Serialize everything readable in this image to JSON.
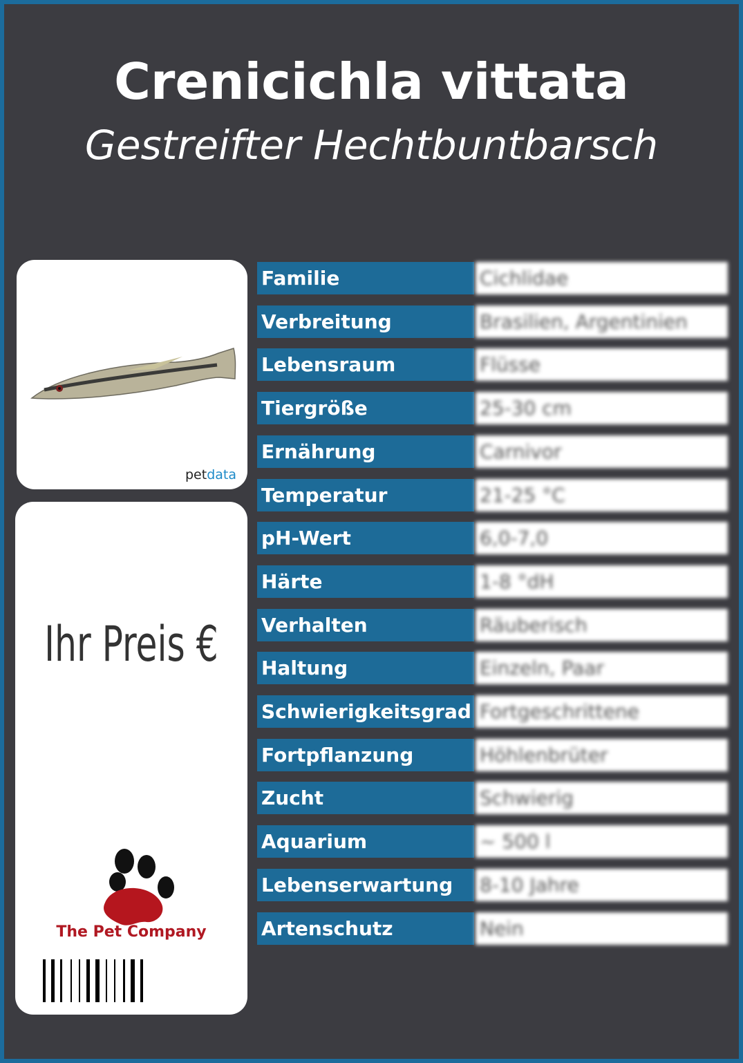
{
  "header": {
    "title": "Crenicichla vittata",
    "subtitle": "Gestreifter Hechtbuntbarsch"
  },
  "image_card": {
    "brand": [
      "pet",
      "data"
    ]
  },
  "price_card": {
    "price_label": "Ihr Preis €",
    "company": "The Pet Company"
  },
  "table": {
    "rows": [
      [
        "Familie",
        "Cichlidae"
      ],
      [
        "Verbreitung",
        "Brasilien, Argentinien"
      ],
      [
        "Lebensraum",
        "Flüsse"
      ],
      [
        "Tiergröße",
        "25-30 cm"
      ],
      [
        "Ernährung",
        "Carnivor"
      ],
      [
        "Temperatur",
        "21-25 °C"
      ],
      [
        "pH-Wert",
        "6,0-7,0"
      ],
      [
        "Härte",
        "1-8 °dH"
      ],
      [
        "Verhalten",
        "Räuberisch"
      ],
      [
        "Haltung",
        "Einzeln, Paar"
      ],
      [
        "Schwierigkeitsgrad",
        "Fortgeschrittene"
      ],
      [
        "Fortpflanzung",
        "Höhlenbrüter"
      ],
      [
        "Zucht",
        "Schwierig"
      ],
      [
        "Aquarium",
        "~ 500 l"
      ],
      [
        "Lebenserwartung",
        "8-10 Jahre"
      ],
      [
        "Artenschutz",
        "Nein"
      ]
    ]
  }
}
